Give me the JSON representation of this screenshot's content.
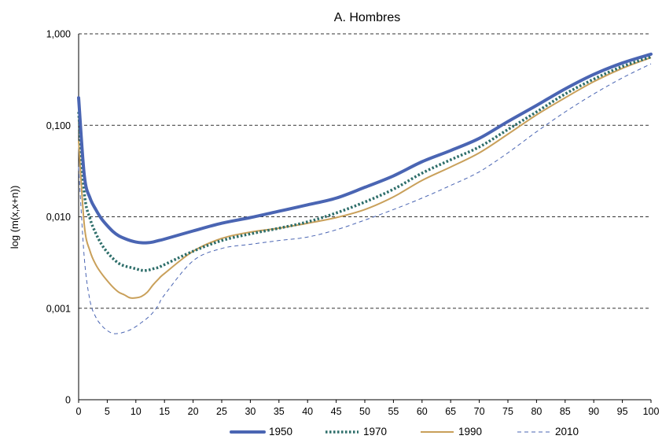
{
  "chart_data": {
    "type": "line",
    "title": "A. Hombres",
    "xlabel": "",
    "ylabel": "log (m(x,x+n))",
    "y_scale": "log",
    "xlim": [
      0,
      100
    ],
    "ylim": [
      0.0001,
      1
    ],
    "grid": "horizontal dashed",
    "legend_position": "bottom",
    "x_ticks": [
      "0",
      "5",
      "10",
      "15",
      "20",
      "25",
      "30",
      "35",
      "40",
      "45",
      "50",
      "55",
      "60",
      "65",
      "70",
      "75",
      "80",
      "85",
      "90",
      "95",
      "100"
    ],
    "y_ticks": [
      {
        "value": 1,
        "label": "1,000"
      },
      {
        "value": 0.1,
        "label": "0,100"
      },
      {
        "value": 0.01,
        "label": "0,010"
      },
      {
        "value": 0.001,
        "label": "0,001"
      },
      {
        "value": 0.0001,
        "label": "0"
      }
    ],
    "series": [
      {
        "name": "1950",
        "color": "#4a65b3",
        "style": "solid-thick",
        "x": [
          0,
          1,
          2,
          3,
          4,
          5,
          6,
          7,
          8,
          9,
          10,
          11,
          12,
          13,
          14,
          15,
          20,
          25,
          30,
          35,
          40,
          45,
          50,
          55,
          60,
          65,
          70,
          75,
          80,
          85,
          90,
          95,
          100
        ],
        "y": [
          0.2,
          0.028,
          0.016,
          0.012,
          0.0095,
          0.008,
          0.0069,
          0.0062,
          0.0058,
          0.0055,
          0.0053,
          0.0052,
          0.0052,
          0.0053,
          0.0055,
          0.0057,
          0.007,
          0.0085,
          0.0098,
          0.0115,
          0.0135,
          0.016,
          0.021,
          0.028,
          0.04,
          0.053,
          0.072,
          0.11,
          0.165,
          0.25,
          0.36,
          0.48,
          0.6
        ]
      },
      {
        "name": "1970",
        "color": "#2e6e6a",
        "style": "dotted",
        "x": [
          0,
          1,
          2,
          3,
          4,
          5,
          6,
          7,
          8,
          9,
          10,
          11,
          12,
          13,
          14,
          15,
          20,
          25,
          30,
          35,
          40,
          45,
          50,
          55,
          60,
          65,
          70,
          75,
          80,
          85,
          90,
          95,
          100
        ],
        "y": [
          0.14,
          0.018,
          0.0095,
          0.0066,
          0.005,
          0.0041,
          0.0035,
          0.0031,
          0.0029,
          0.0028,
          0.0027,
          0.0026,
          0.0026,
          0.0027,
          0.0028,
          0.003,
          0.0042,
          0.0055,
          0.0065,
          0.0075,
          0.0088,
          0.011,
          0.0145,
          0.02,
          0.03,
          0.042,
          0.058,
          0.09,
          0.14,
          0.22,
          0.32,
          0.44,
          0.56
        ]
      },
      {
        "name": "1990",
        "color": "#c9a05a",
        "style": "solid",
        "x": [
          0,
          1,
          2,
          3,
          4,
          5,
          6,
          7,
          8,
          9,
          10,
          11,
          12,
          13,
          14,
          15,
          20,
          25,
          30,
          35,
          40,
          45,
          50,
          55,
          60,
          65,
          70,
          75,
          80,
          85,
          90,
          95,
          100
        ],
        "y": [
          0.068,
          0.008,
          0.0042,
          0.003,
          0.0024,
          0.002,
          0.0017,
          0.0015,
          0.0014,
          0.0013,
          0.0013,
          0.00135,
          0.0015,
          0.0018,
          0.0021,
          0.0024,
          0.0042,
          0.0058,
          0.0068,
          0.0075,
          0.0085,
          0.0098,
          0.012,
          0.0165,
          0.025,
          0.035,
          0.05,
          0.08,
          0.13,
          0.2,
          0.3,
          0.42,
          0.55
        ]
      },
      {
        "name": "2010",
        "color": "#4a65b3",
        "style": "dashed",
        "x": [
          0,
          1,
          2,
          3,
          4,
          5,
          6,
          7,
          8,
          9,
          10,
          11,
          12,
          13,
          14,
          15,
          20,
          25,
          30,
          35,
          40,
          45,
          50,
          55,
          60,
          65,
          70,
          75,
          80,
          85,
          90,
          95,
          100
        ],
        "y": [
          0.035,
          0.0035,
          0.0012,
          0.0008,
          0.00065,
          0.00057,
          0.00053,
          0.00053,
          0.00055,
          0.00058,
          0.00063,
          0.0007,
          0.00078,
          0.0009,
          0.0011,
          0.0014,
          0.0033,
          0.0045,
          0.005,
          0.0055,
          0.006,
          0.0072,
          0.0092,
          0.012,
          0.016,
          0.022,
          0.031,
          0.05,
          0.085,
          0.14,
          0.22,
          0.33,
          0.47
        ]
      }
    ]
  }
}
